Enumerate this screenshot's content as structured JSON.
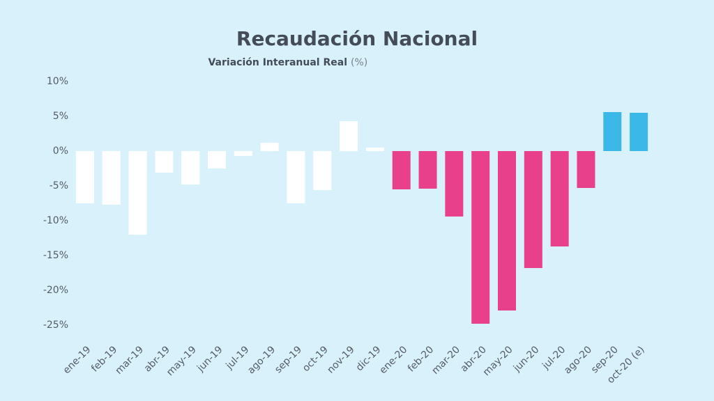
{
  "chart_data": {
    "type": "bar",
    "title": "Recaudación Nacional",
    "subtitle": "Variación Interanual Real",
    "subtitle_unit": "(%)",
    "categories": [
      "ene-19",
      "feb-19",
      "mar-19",
      "abr-19",
      "may-19",
      "jun-19",
      "jul-19",
      "ago-19",
      "sep-19",
      "oct-19",
      "nov-19",
      "dic-19",
      "ene-20",
      "feb-20",
      "mar-20",
      "abr-20",
      "may-20",
      "jun-20",
      "jul-20",
      "ago-20",
      "sep-20",
      "oct-20 (e)"
    ],
    "values": [
      -7.5,
      -7.7,
      -12.0,
      -3.1,
      -4.8,
      -2.5,
      -0.7,
      1.2,
      -7.5,
      -5.6,
      4.3,
      0.5,
      -5.5,
      -5.4,
      -9.4,
      -24.8,
      -22.9,
      -16.8,
      -13.7,
      -5.3,
      5.6,
      5.5
    ],
    "colors": [
      "#ffffff",
      "#ffffff",
      "#ffffff",
      "#ffffff",
      "#ffffff",
      "#ffffff",
      "#ffffff",
      "#ffffff",
      "#ffffff",
      "#ffffff",
      "#ffffff",
      "#ffffff",
      "#e8408b",
      "#e8408b",
      "#e8408b",
      "#e8408b",
      "#e8408b",
      "#e8408b",
      "#e8408b",
      "#e8408b",
      "#3cb8e8",
      "#3cb8e8"
    ],
    "ylim": [
      -25,
      10
    ],
    "yticks": [
      {
        "value": 10,
        "label": "10%"
      },
      {
        "value": 5,
        "label": "5%"
      },
      {
        "value": 0,
        "label": "0%"
      },
      {
        "value": -5,
        "label": "-5%"
      },
      {
        "value": -10,
        "label": "-10%"
      },
      {
        "value": -15,
        "label": "-15%"
      },
      {
        "value": -20,
        "label": "-20%"
      },
      {
        "value": -25,
        "label": "-25%"
      }
    ],
    "grid": false
  }
}
